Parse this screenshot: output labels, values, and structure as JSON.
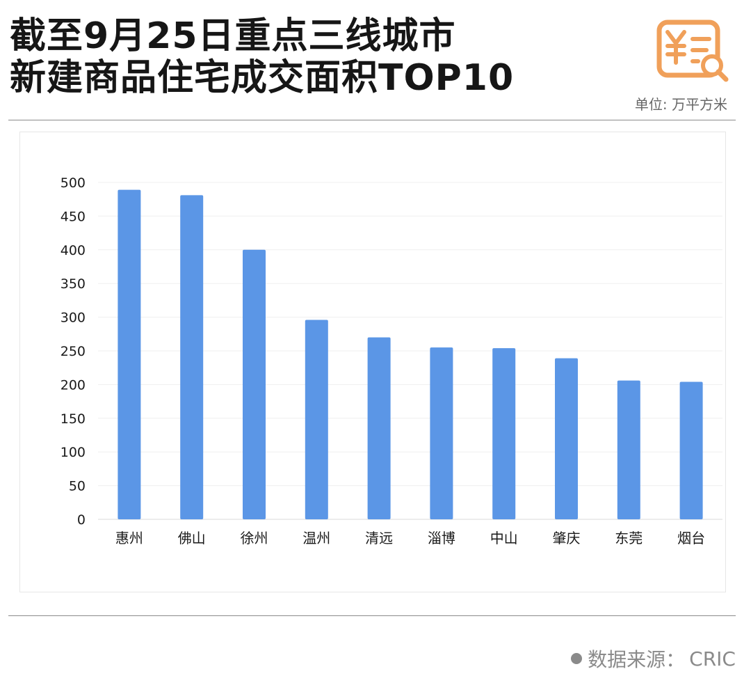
{
  "header": {
    "title_line1": "截至9月25日重点三线城市",
    "title_line2": "新建商品住宅成交面积TOP10",
    "unit_label": "单位: 万平方米",
    "logo_icon": "yuan-receipt-search-icon",
    "logo_color": "#F0A05A"
  },
  "colors": {
    "bar": "#5B96E6",
    "axis": "#d9d9d9",
    "tick_text": "#1a1a1a",
    "source_text": "#8a8a8a"
  },
  "chart_data": {
    "type": "bar",
    "title": "截至9月25日重点三线城市新建商品住宅成交面积TOP10",
    "categories": [
      "惠州",
      "佛山",
      "徐州",
      "温州",
      "清远",
      "淄博",
      "中山",
      "肇庆",
      "东莞",
      "烟台"
    ],
    "values": [
      489,
      481,
      400,
      296,
      270,
      255,
      254,
      239,
      206,
      204
    ],
    "ylim": [
      0,
      500
    ],
    "yticks": [
      0,
      50,
      100,
      150,
      200,
      250,
      300,
      350,
      400,
      450,
      500
    ],
    "ylabel": "单位: 万平方米",
    "xlabel": "",
    "grid": true,
    "legend": "none"
  },
  "footer": {
    "source_label": "数据来源：",
    "source_value": "CRIC"
  }
}
